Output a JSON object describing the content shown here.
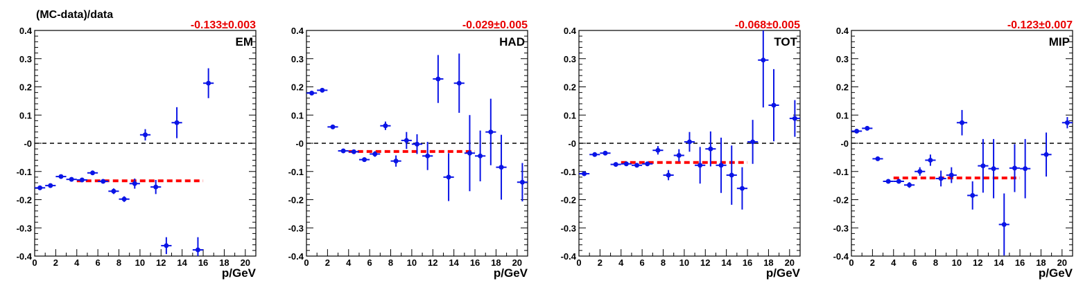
{
  "colors": {
    "points": "#0a14e6",
    "fit": "#ff0000",
    "reference": "#000000",
    "fit_label": "#e80000"
  },
  "chart_data": {
    "type": "scatter",
    "ylabel": "(MC-data)/data",
    "panels": [
      {
        "label": "EM",
        "xlabel": "p/GeV",
        "fit_label": "-0.133±0.003",
        "fit_value": -0.133,
        "fit_range": [
          4,
          16
        ],
        "xlim": [
          0,
          21
        ],
        "ylim": [
          -0.4,
          0.4
        ],
        "xticks": [
          0,
          2,
          4,
          6,
          8,
          10,
          12,
          14,
          16,
          18,
          20
        ],
        "xtick_labels": [
          "0",
          "2",
          "4",
          "6",
          "8",
          "10",
          "12",
          "14",
          "16",
          "18",
          "20"
        ],
        "yticks": [
          -0.4,
          -0.3,
          -0.2,
          -0.1,
          0,
          0.1,
          0.2,
          0.3,
          0.4
        ],
        "ytick_labels": [
          "-0.4",
          "-0.3",
          "-0.2",
          "-0.1",
          "-0",
          "0.1",
          "0.2",
          "0.3",
          "0.4"
        ],
        "points": [
          {
            "x": 0.5,
            "y": -0.158,
            "err": 0.005
          },
          {
            "x": 1.5,
            "y": -0.15,
            "err": 0.005
          },
          {
            "x": 2.5,
            "y": -0.118,
            "err": 0.005
          },
          {
            "x": 3.5,
            "y": -0.128,
            "err": 0.005
          },
          {
            "x": 4.5,
            "y": -0.13,
            "err": 0.005
          },
          {
            "x": 5.5,
            "y": -0.105,
            "err": 0.006
          },
          {
            "x": 6.5,
            "y": -0.135,
            "err": 0.006
          },
          {
            "x": 7.5,
            "y": -0.17,
            "err": 0.01
          },
          {
            "x": 8.5,
            "y": -0.198,
            "err": 0.01
          },
          {
            "x": 9.5,
            "y": -0.143,
            "err": 0.018
          },
          {
            "x": 10.5,
            "y": 0.03,
            "err": 0.02
          },
          {
            "x": 11.5,
            "y": -0.155,
            "err": 0.025
          },
          {
            "x": 12.5,
            "y": -0.363,
            "err": 0.03
          },
          {
            "x": 13.5,
            "y": 0.073,
            "err": 0.055
          },
          {
            "x": 15.5,
            "y": -0.378,
            "err": 0.045
          },
          {
            "x": 16.5,
            "y": 0.213,
            "err": 0.053
          }
        ]
      },
      {
        "label": "HAD",
        "xlabel": "p/GeV",
        "fit_label": "-0.029±0.005",
        "fit_value": -0.029,
        "fit_range": [
          4,
          16
        ],
        "xlim": [
          0,
          21
        ],
        "ylim": [
          -0.4,
          0.4
        ],
        "xticks": [
          0,
          2,
          4,
          6,
          8,
          10,
          12,
          14,
          16,
          18,
          20
        ],
        "xtick_labels": [
          "0",
          "2",
          "4",
          "6",
          "8",
          "10",
          "12",
          "14",
          "16",
          "18",
          "20"
        ],
        "yticks": [
          -0.4,
          -0.3,
          -0.2,
          -0.1,
          0,
          0.1,
          0.2,
          0.3,
          0.4
        ],
        "ytick_labels": [
          "-0.4",
          "-0.3",
          "-0.2",
          "-0.1",
          "-0",
          "0.1",
          "0.2",
          "0.3",
          "0.4"
        ],
        "points": [
          {
            "x": 0.5,
            "y": 0.178,
            "err": 0.005
          },
          {
            "x": 1.5,
            "y": 0.188,
            "err": 0.005
          },
          {
            "x": 2.5,
            "y": 0.058,
            "err": 0.006
          },
          {
            "x": 3.5,
            "y": -0.027,
            "err": 0.006
          },
          {
            "x": 4.5,
            "y": -0.03,
            "err": 0.006
          },
          {
            "x": 5.5,
            "y": -0.058,
            "err": 0.008
          },
          {
            "x": 6.5,
            "y": -0.038,
            "err": 0.01
          },
          {
            "x": 7.5,
            "y": 0.062,
            "err": 0.015
          },
          {
            "x": 8.5,
            "y": -0.063,
            "err": 0.02
          },
          {
            "x": 9.5,
            "y": 0.01,
            "err": 0.03
          },
          {
            "x": 10.5,
            "y": -0.003,
            "err": 0.035
          },
          {
            "x": 11.5,
            "y": -0.045,
            "err": 0.05
          },
          {
            "x": 12.5,
            "y": 0.228,
            "err": 0.085
          },
          {
            "x": 13.5,
            "y": -0.12,
            "err": 0.085
          },
          {
            "x": 14.5,
            "y": 0.213,
            "err": 0.105
          },
          {
            "x": 15.5,
            "y": -0.035,
            "err": 0.135
          },
          {
            "x": 16.5,
            "y": -0.045,
            "err": 0.09
          },
          {
            "x": 17.5,
            "y": 0.04,
            "err": 0.118
          },
          {
            "x": 18.5,
            "y": -0.085,
            "err": 0.115
          },
          {
            "x": 20.5,
            "y": -0.138,
            "err": 0.068
          }
        ]
      },
      {
        "label": "TOT",
        "xlabel": "p/GeV",
        "fit_label": "-0.068±0.005",
        "fit_value": -0.068,
        "fit_range": [
          4,
          16
        ],
        "xlim": [
          0,
          21
        ],
        "ylim": [
          -0.4,
          0.4
        ],
        "xticks": [
          0,
          2,
          4,
          6,
          8,
          10,
          12,
          14,
          16,
          18,
          20
        ],
        "xtick_labels": [
          "0",
          "2",
          "4",
          "6",
          "8",
          "10",
          "12",
          "14",
          "16",
          "18",
          "20"
        ],
        "yticks": [
          -0.4,
          -0.3,
          -0.2,
          -0.1,
          0,
          0.1,
          0.2,
          0.3,
          0.4
        ],
        "ytick_labels": [
          "-0.4",
          "-0.3",
          "-0.2",
          "-0.1",
          "-0",
          "0.1",
          "0.2",
          "0.3",
          "0.4"
        ],
        "points": [
          {
            "x": 0.5,
            "y": -0.108,
            "err": 0.005
          },
          {
            "x": 1.5,
            "y": -0.04,
            "err": 0.005
          },
          {
            "x": 2.5,
            "y": -0.035,
            "err": 0.005
          },
          {
            "x": 3.5,
            "y": -0.075,
            "err": 0.005
          },
          {
            "x": 4.5,
            "y": -0.073,
            "err": 0.005
          },
          {
            "x": 5.5,
            "y": -0.078,
            "err": 0.006
          },
          {
            "x": 6.5,
            "y": -0.073,
            "err": 0.008
          },
          {
            "x": 7.5,
            "y": -0.025,
            "err": 0.015
          },
          {
            "x": 8.5,
            "y": -0.113,
            "err": 0.018
          },
          {
            "x": 9.5,
            "y": -0.043,
            "err": 0.022
          },
          {
            "x": 10.5,
            "y": 0.005,
            "err": 0.035
          },
          {
            "x": 11.5,
            "y": -0.078,
            "err": 0.065
          },
          {
            "x": 12.5,
            "y": -0.02,
            "err": 0.062
          },
          {
            "x": 13.5,
            "y": -0.078,
            "err": 0.098
          },
          {
            "x": 14.5,
            "y": -0.113,
            "err": 0.105
          },
          {
            "x": 15.5,
            "y": -0.16,
            "err": 0.075
          },
          {
            "x": 16.5,
            "y": 0.005,
            "err": 0.078
          },
          {
            "x": 17.5,
            "y": 0.295,
            "err": 0.168
          },
          {
            "x": 18.5,
            "y": 0.135,
            "err": 0.128
          },
          {
            "x": 20.5,
            "y": 0.088,
            "err": 0.065
          }
        ]
      },
      {
        "label": "MIP",
        "xlabel": "p/GeV",
        "fit_label": "-0.123±0.007",
        "fit_value": -0.123,
        "fit_range": [
          4,
          16
        ],
        "xlim": [
          0,
          21
        ],
        "ylim": [
          -0.4,
          0.4
        ],
        "xticks": [
          0,
          2,
          4,
          6,
          8,
          10,
          12,
          14,
          16,
          18,
          20
        ],
        "xtick_labels": [
          "0",
          "2",
          "4",
          "6",
          "8",
          "10",
          "12",
          "14",
          "16",
          "18",
          "20"
        ],
        "yticks": [
          -0.4,
          -0.3,
          -0.2,
          -0.1,
          0,
          0.1,
          0.2,
          0.3,
          0.4
        ],
        "ytick_labels": [
          "-0.4",
          "-0.3",
          "-0.2",
          "-0.1",
          "-0",
          "0.1",
          "0.2",
          "0.3",
          "0.4"
        ],
        "points": [
          {
            "x": 0.5,
            "y": 0.043,
            "err": 0.005
          },
          {
            "x": 1.5,
            "y": 0.053,
            "err": 0.005
          },
          {
            "x": 2.5,
            "y": -0.055,
            "err": 0.005
          },
          {
            "x": 3.5,
            "y": -0.135,
            "err": 0.005
          },
          {
            "x": 4.5,
            "y": -0.135,
            "err": 0.006
          },
          {
            "x": 5.5,
            "y": -0.148,
            "err": 0.01
          },
          {
            "x": 6.5,
            "y": -0.1,
            "err": 0.015
          },
          {
            "x": 7.5,
            "y": -0.06,
            "err": 0.02
          },
          {
            "x": 8.5,
            "y": -0.125,
            "err": 0.028
          },
          {
            "x": 9.5,
            "y": -0.113,
            "err": 0.028
          },
          {
            "x": 10.5,
            "y": 0.073,
            "err": 0.045
          },
          {
            "x": 11.5,
            "y": -0.185,
            "err": 0.05
          },
          {
            "x": 12.5,
            "y": -0.08,
            "err": 0.095
          },
          {
            "x": 13.5,
            "y": -0.09,
            "err": 0.105
          },
          {
            "x": 14.5,
            "y": -0.288,
            "err": 0.11
          },
          {
            "x": 15.5,
            "y": -0.088,
            "err": 0.085
          },
          {
            "x": 16.5,
            "y": -0.09,
            "err": 0.105
          },
          {
            "x": 18.5,
            "y": -0.04,
            "err": 0.078
          },
          {
            "x": 20.5,
            "y": 0.073,
            "err": 0.02
          }
        ]
      }
    ]
  }
}
